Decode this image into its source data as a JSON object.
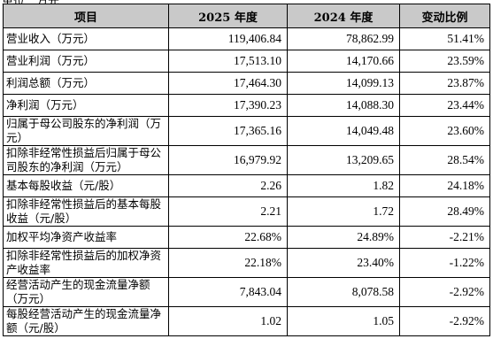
{
  "table": {
    "headers": [
      "项目",
      "2025 年度",
      "2024 年度",
      "变动比例"
    ],
    "rows": [
      {
        "item": "营业收入（万元）",
        "y2025": "119,406.84",
        "y2024": "78,862.99",
        "change": "51.41%"
      },
      {
        "item": "营业利润（万元）",
        "y2025": "17,513.10",
        "y2024": "14,170.66",
        "change": "23.59%"
      },
      {
        "item": "利润总额（万元）",
        "y2025": "17,464.30",
        "y2024": "14,099.13",
        "change": "23.87%"
      },
      {
        "item": "净利润（万元）",
        "y2025": "17,390.23",
        "y2024": "14,088.30",
        "change": "23.44%"
      },
      {
        "item": "归属于母公司股东的净利润（万元）",
        "y2025": "17,365.16",
        "y2024": "14,049.48",
        "change": "23.60%"
      },
      {
        "item": "扣除非经常性损益后归属于母公司股东的净利润（万元）",
        "y2025": "16,979.92",
        "y2024": "13,209.65",
        "change": "28.54%"
      },
      {
        "item": "基本每股收益（元/股）",
        "y2025": "2.26",
        "y2024": "1.82",
        "change": "24.18%"
      },
      {
        "item": "扣除非经常性损益后的基本每股收益（元/股）",
        "y2025": "2.21",
        "y2024": "1.72",
        "change": "28.49%"
      },
      {
        "item": "加权平均净资产收益率",
        "y2025": "22.68%",
        "y2024": "24.89%",
        "change": "-2.21%"
      },
      {
        "item": "扣除非经常性损益后的加权净资产收益率",
        "y2025": "22.18%",
        "y2024": "23.40%",
        "change": "-1.22%"
      },
      {
        "item": "经营活动产生的现金流量净额（万元）",
        "y2025": "7,843.04",
        "y2024": "8,078.58",
        "change": "-2.92%"
      },
      {
        "item": "每股经营活动产生的现金流量净额（元/股）",
        "y2025": "1.02",
        "y2024": "1.05",
        "change": "-2.92%"
      }
    ]
  }
}
